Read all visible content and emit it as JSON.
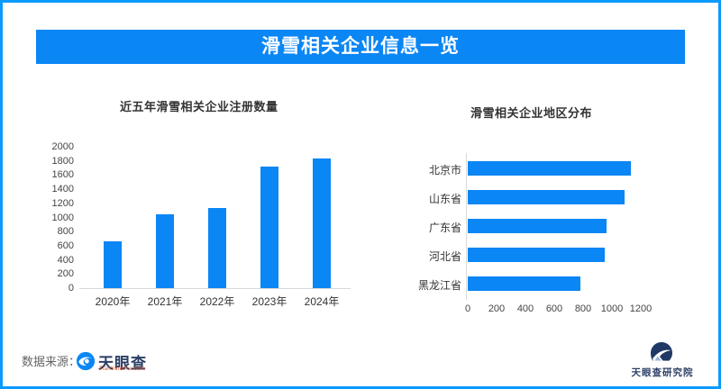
{
  "header": {
    "title": "滑雪相关企业信息一览"
  },
  "chart_data": [
    {
      "type": "bar",
      "orientation": "vertical",
      "title": "近五年滑雪相关企业注册数量",
      "categories": [
        "2020年",
        "2021年",
        "2022年",
        "2023年",
        "2024年"
      ],
      "values": [
        660,
        1050,
        1130,
        1720,
        1830
      ],
      "ylim": [
        0,
        2000
      ],
      "ytick_step": 200,
      "xlabel": "",
      "ylabel": "",
      "grid": false,
      "legend_position": "none"
    },
    {
      "type": "bar",
      "orientation": "horizontal",
      "title": "滑雪相关企业地区分布",
      "categories": [
        "北京市",
        "山东省",
        "广东省",
        "河北省",
        "黑龙江省"
      ],
      "values": [
        1130,
        1090,
        960,
        950,
        780
      ],
      "xlim": [
        0,
        1200
      ],
      "xtick_step": 200,
      "xlabel": "",
      "ylabel": "",
      "grid": false,
      "legend_position": "none"
    }
  ],
  "footer": {
    "source_label": "数据来源：",
    "logo_name": "天眼查",
    "logo_sub": "TianYanCha.com",
    "institute": "天眼查研究院"
  },
  "colors": {
    "accent_blue": "#0a86f5",
    "frame_blue": "#0a9bff",
    "title_text": "#333333",
    "axis_text": "#444444",
    "axis_line": "#d9d9d9",
    "source_text": "#666666",
    "logo_navy": "#2b3f66",
    "logo_sub_red": "#e8541e",
    "background": "#ffffff"
  }
}
